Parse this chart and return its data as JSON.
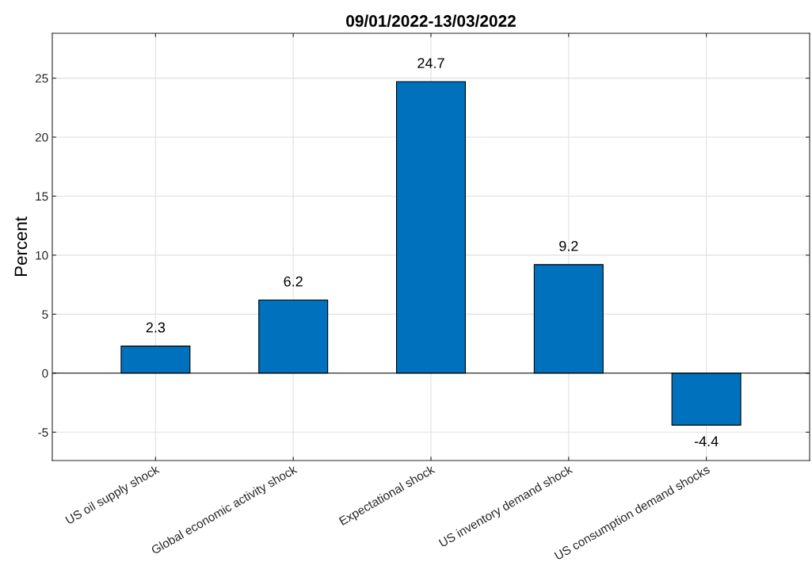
{
  "chart_data": {
    "type": "bar",
    "title": "09/01/2022-13/03/2022",
    "ylabel": "Percent",
    "categories": [
      "US oil supply shock",
      "Global economic activity shock",
      "Expectational shock",
      "US inventory demand shock",
      "US consumption demand shocks"
    ],
    "values": [
      2.3,
      6.2,
      24.7,
      9.2,
      -4.4
    ],
    "color": "#0072bd",
    "ylim": [
      -7.4,
      28.8
    ],
    "yticks": [
      {
        "value": -5,
        "label": "-5"
      },
      0,
      5,
      10,
      15,
      20,
      25
    ],
    "grid": true,
    "data_labels": true,
    "ref_lines": [
      {
        "axis": "y",
        "value": 0,
        "color": "#000000"
      }
    ]
  }
}
